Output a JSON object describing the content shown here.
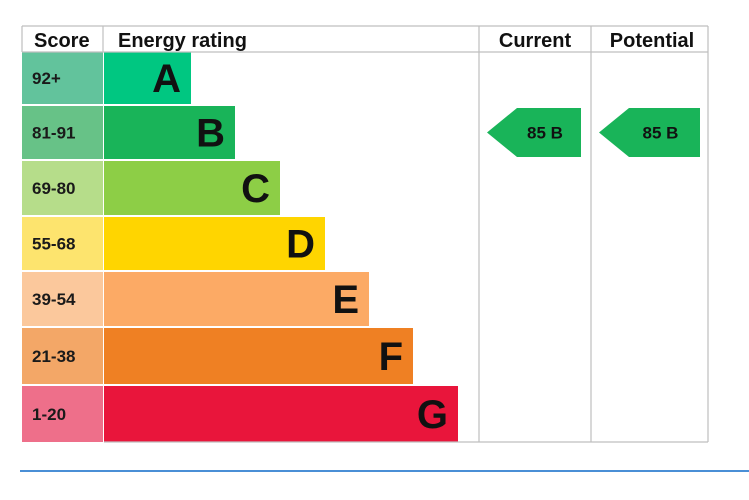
{
  "chart_data": {
    "type": "table",
    "headers": {
      "score": "Score",
      "rating": "Energy rating",
      "current": "Current",
      "potential": "Potential"
    },
    "bands": [
      {
        "score": "92+",
        "letter": "A",
        "color": "#00c781",
        "score_bg": "#62c39c"
      },
      {
        "score": "81-91",
        "letter": "B",
        "color": "#19b459",
        "score_bg": "#67c287"
      },
      {
        "score": "69-80",
        "letter": "C",
        "color": "#8dce46",
        "score_bg": "#b6dd8a"
      },
      {
        "score": "55-68",
        "letter": "D",
        "color": "#ffd500",
        "score_bg": "#fde46e"
      },
      {
        "score": "39-54",
        "letter": "E",
        "color": "#fcaa65",
        "score_bg": "#fbc89c"
      },
      {
        "score": "21-38",
        "letter": "F",
        "color": "#ef8023",
        "score_bg": "#f3a767"
      },
      {
        "score": "1-20",
        "letter": "G",
        "color": "#e9153b",
        "score_bg": "#ee6f8a"
      }
    ],
    "current": {
      "value": 85,
      "letter": "B",
      "label": "85  B",
      "color": "#19b459"
    },
    "potential": {
      "value": 85,
      "letter": "B",
      "label": "85  B",
      "color": "#19b459"
    }
  },
  "colors": {
    "border": "#bfbfbf",
    "rule": "#4a8fd6"
  }
}
